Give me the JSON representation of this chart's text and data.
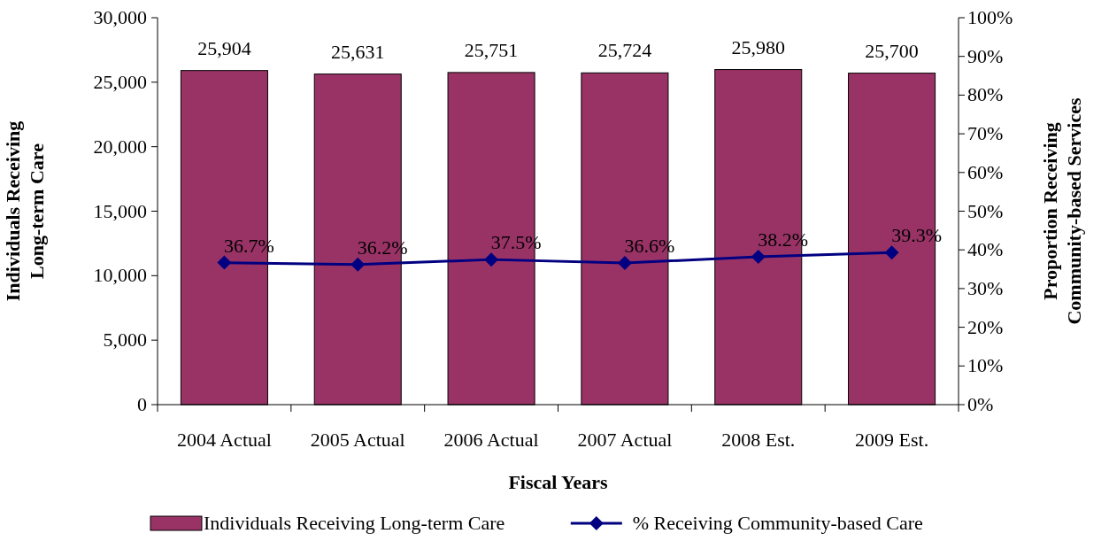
{
  "chart_data": {
    "type": "bar",
    "xlabel": "Fiscal Years",
    "ylabel": "Individuals Receiving\nLong-term Care",
    "y2label": "Proportion Receiving\nCommunity-based Services",
    "categories": [
      "2004 Actual",
      "2005 Actual",
      "2006 Actual",
      "2007 Actual",
      "2008 Est.",
      "2009 Est."
    ],
    "series": [
      {
        "name": "Individuals Receiving Long-term Care",
        "color": "#993366",
        "values": [
          25904,
          25631,
          25751,
          25724,
          25980,
          25700
        ],
        "value_labels": [
          "25,904",
          "25,631",
          "25,751",
          "25,724",
          "25,980",
          "25,700"
        ]
      },
      {
        "name": "% Receiving Community-based Care",
        "type": "line",
        "axis": "y2",
        "color": "#000080",
        "marker": "diamond",
        "values": [
          36.7,
          36.2,
          37.5,
          36.6,
          38.2,
          39.3
        ],
        "value_labels": [
          "36.7%",
          "36.2%",
          "37.5%",
          "36.6%",
          "38.2%",
          "39.3%"
        ]
      }
    ],
    "ylim": [
      0,
      30000
    ],
    "yticks": [
      {
        "value": 0,
        "label": "0"
      },
      {
        "value": 5000,
        "label": "5,000"
      },
      {
        "value": 10000,
        "label": "10,000"
      },
      {
        "value": 15000,
        "label": "15,000"
      },
      {
        "value": 20000,
        "label": "20,000"
      },
      {
        "value": 25000,
        "label": "25,000"
      },
      {
        "value": 30000,
        "label": "30,000"
      }
    ],
    "y2lim": [
      0,
      100
    ],
    "y2ticks": [
      {
        "value": 0,
        "label": "0%"
      },
      {
        "value": 10,
        "label": "10%"
      },
      {
        "value": 20,
        "label": "20%"
      },
      {
        "value": 30,
        "label": "30%"
      },
      {
        "value": 40,
        "label": "40%"
      },
      {
        "value": 50,
        "label": "50%"
      },
      {
        "value": 60,
        "label": "60%"
      },
      {
        "value": 70,
        "label": "70%"
      },
      {
        "value": 80,
        "label": "80%"
      },
      {
        "value": 90,
        "label": "90%"
      },
      {
        "value": 100,
        "label": "100%"
      }
    ],
    "legend": "bottom",
    "grid": false
  }
}
